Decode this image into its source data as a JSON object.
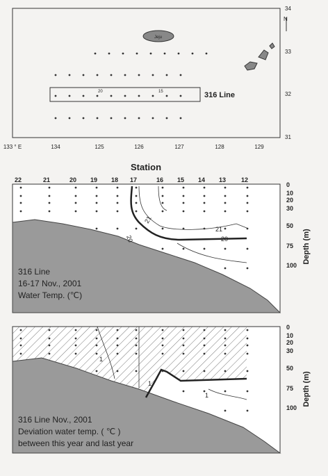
{
  "map": {
    "lon_labels": [
      "133 ° E",
      "134",
      "125",
      "126",
      "127",
      "128",
      "129"
    ],
    "lat_labels": [
      "34",
      "33",
      "32",
      "31"
    ],
    "north": "N",
    "island": "Jeju",
    "line_label": "316 Line",
    "station_marks": [
      "20",
      "15"
    ]
  },
  "section1": {
    "title": "Station",
    "stations": [
      "22",
      "21",
      "20",
      "19",
      "18",
      "17",
      "16",
      "15",
      "14",
      "13",
      "12"
    ],
    "depths": [
      "0",
      "10",
      "20",
      "30",
      "50",
      "75",
      "100"
    ],
    "depth_axis": "Depth (m)",
    "contour_labels": [
      "21",
      "20",
      "21",
      "20"
    ],
    "caption": [
      "316 Line",
      "16-17 Nov., 2001",
      "Water Temp. (℃)"
    ]
  },
  "section2": {
    "depths": [
      "0",
      "10",
      "20",
      "30",
      "50",
      "75",
      "100"
    ],
    "depth_axis": "Depth (m)",
    "contour_labels": [
      "1",
      "1",
      "1"
    ],
    "caption": [
      "316 Line Nov., 2001",
      "Deviation water temp. ( ℃ )",
      "between this year and last year"
    ]
  }
}
